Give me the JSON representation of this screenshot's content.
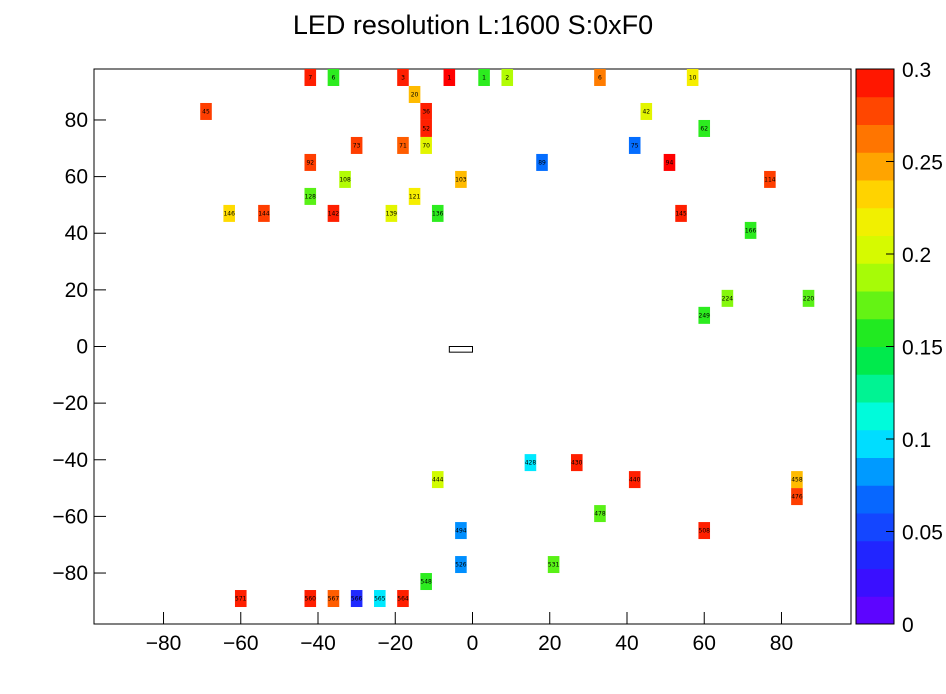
{
  "chart_data": {
    "type": "heatmap",
    "title": "LED resolution L:1600 S:0xF0",
    "xlim": [
      -98,
      98
    ],
    "ylim": [
      -98,
      98
    ],
    "x_ticks": [
      "−80",
      "−60",
      "−40",
      "−20",
      "0",
      "20",
      "40",
      "60",
      "80"
    ],
    "x_tick_values": [
      -80,
      -60,
      -40,
      -20,
      0,
      20,
      40,
      60,
      80
    ],
    "y_ticks": [
      "80",
      "60",
      "40",
      "20",
      "0",
      "−20",
      "−40",
      "−60",
      "−80"
    ],
    "y_tick_values": [
      80,
      60,
      40,
      20,
      0,
      -20,
      -40,
      -60,
      -80
    ],
    "colorbar": {
      "range": [
        0,
        0.3
      ],
      "ticks": [
        "0",
        "0.05",
        "0.1",
        "0.15",
        "0.2",
        "0.25",
        "0.3"
      ],
      "tick_values": [
        0,
        0.05,
        0.1,
        0.15,
        0.2,
        0.25,
        0.3
      ]
    },
    "center_gap": {
      "x_range": [
        -6,
        0
      ],
      "y_range": [
        -2,
        0
      ]
    },
    "highlighted_cells": [
      {
        "label": "7",
        "x": -42,
        "y": 98,
        "value": 0.29
      },
      {
        "label": "6",
        "x": -36,
        "y": 98,
        "value": 0.16
      },
      {
        "label": "3",
        "x": -18,
        "y": 98,
        "value": 0.29
      },
      {
        "label": "1",
        "x": -6,
        "y": 98,
        "value": 0.3
      },
      {
        "label": "1",
        "x": 3,
        "y": 98,
        "value": 0.16
      },
      {
        "label": "2",
        "x": 9,
        "y": 98,
        "value": 0.19
      },
      {
        "label": "6",
        "x": 33,
        "y": 98,
        "value": 0.26
      },
      {
        "label": "10",
        "x": 57,
        "y": 98,
        "value": 0.22
      },
      {
        "label": "20",
        "x": -15,
        "y": 92,
        "value": 0.24
      },
      {
        "label": "45",
        "x": -69,
        "y": 86,
        "value": 0.28
      },
      {
        "label": "36",
        "x": -12,
        "y": 86,
        "value": 0.29
      },
      {
        "label": "42",
        "x": 45,
        "y": 86,
        "value": 0.21
      },
      {
        "label": "52",
        "x": -12,
        "y": 80,
        "value": 0.29
      },
      {
        "label": "62",
        "x": 60,
        "y": 80,
        "value": 0.16
      },
      {
        "label": "73",
        "x": -30,
        "y": 74,
        "value": 0.28
      },
      {
        "label": "71",
        "x": -18,
        "y": 74,
        "value": 0.27
      },
      {
        "label": "70",
        "x": -12,
        "y": 74,
        "value": 0.21
      },
      {
        "label": "75",
        "x": 42,
        "y": 74,
        "value": 0.07
      },
      {
        "label": "92",
        "x": -42,
        "y": 68,
        "value": 0.28
      },
      {
        "label": "89",
        "x": 18,
        "y": 68,
        "value": 0.07
      },
      {
        "label": "94",
        "x": 51,
        "y": 68,
        "value": 0.3
      },
      {
        "label": "108",
        "x": -33,
        "y": 62,
        "value": 0.19
      },
      {
        "label": "103",
        "x": -3,
        "y": 62,
        "value": 0.24
      },
      {
        "label": "114",
        "x": 77,
        "y": 62,
        "value": 0.28
      },
      {
        "label": "128",
        "x": -42,
        "y": 56,
        "value": 0.17
      },
      {
        "label": "121",
        "x": -15,
        "y": 56,
        "value": 0.22
      },
      {
        "label": "146",
        "x": -63,
        "y": 50,
        "value": 0.23
      },
      {
        "label": "144",
        "x": -54,
        "y": 50,
        "value": 0.28
      },
      {
        "label": "142",
        "x": -36,
        "y": 50,
        "value": 0.29
      },
      {
        "label": "139",
        "x": -21,
        "y": 50,
        "value": 0.21
      },
      {
        "label": "136",
        "x": -9,
        "y": 50,
        "value": 0.16
      },
      {
        "label": "145",
        "x": 54,
        "y": 50,
        "value": 0.29
      },
      {
        "label": "166",
        "x": 72,
        "y": 44,
        "value": 0.16
      },
      {
        "label": "220",
        "x": 87,
        "y": 20,
        "value": 0.17
      },
      {
        "label": "224",
        "x": 66,
        "y": 20,
        "value": 0.18
      },
      {
        "label": "249",
        "x": 60,
        "y": 14,
        "value": 0.16
      },
      {
        "label": "428",
        "x": 15,
        "y": -38,
        "value": 0.1
      },
      {
        "label": "430",
        "x": 27,
        "y": -38,
        "value": 0.29
      },
      {
        "label": "440",
        "x": 42,
        "y": -44,
        "value": 0.29
      },
      {
        "label": "444",
        "x": -9,
        "y": -44,
        "value": 0.2
      },
      {
        "label": "458",
        "x": 84,
        "y": -44,
        "value": 0.24
      },
      {
        "label": "476",
        "x": 84,
        "y": -50,
        "value": 0.28
      },
      {
        "label": "478",
        "x": 33,
        "y": -56,
        "value": 0.17
      },
      {
        "label": "494",
        "x": -3,
        "y": -62,
        "value": 0.08
      },
      {
        "label": "508",
        "x": 60,
        "y": -62,
        "value": 0.29
      },
      {
        "label": "526",
        "x": -3,
        "y": -74,
        "value": 0.08
      },
      {
        "label": "531",
        "x": 21,
        "y": -74,
        "value": 0.17
      },
      {
        "label": "548",
        "x": -12,
        "y": -80,
        "value": 0.16
      },
      {
        "label": "571",
        "x": -60,
        "y": -86,
        "value": 0.29
      },
      {
        "label": "567",
        "x": -36,
        "y": -86,
        "value": 0.27
      },
      {
        "label": "566",
        "x": -30,
        "y": -86,
        "value": 0.04
      },
      {
        "label": "565",
        "x": -24,
        "y": -86,
        "value": 0.1
      },
      {
        "label": "564",
        "x": -18,
        "y": -86,
        "value": 0.29
      },
      {
        "label": "560",
        "x": -42,
        "y": -86,
        "value": 0.29
      }
    ]
  }
}
